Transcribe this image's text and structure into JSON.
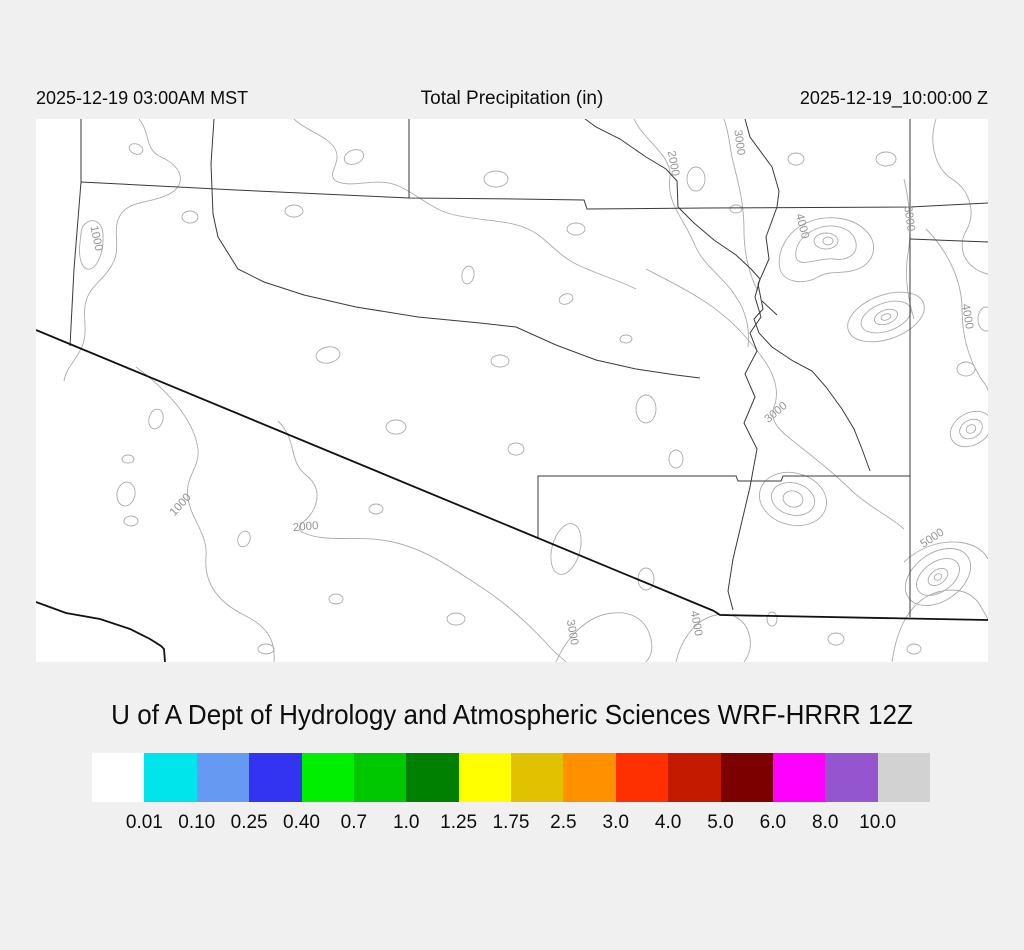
{
  "header": {
    "left_timestamp": "2025-12-19 03:00AM MST",
    "title": "Total Precipitation (in)",
    "right_timestamp": "2025-12-19_10:00:00 Z"
  },
  "map": {
    "type": "contour-map",
    "region": "southern Arizona with county boundaries and US-Mexico border",
    "contour_labels": [
      {
        "text": "1000"
      },
      {
        "text": "1000"
      },
      {
        "text": "2000"
      },
      {
        "text": "2000"
      },
      {
        "text": "3000"
      },
      {
        "text": "3000"
      },
      {
        "text": "3000"
      },
      {
        "text": "4000"
      },
      {
        "text": "4000"
      },
      {
        "text": "4000"
      },
      {
        "text": "5000"
      },
      {
        "text": "6000"
      }
    ]
  },
  "caption": "U of A Dept of Hydrology and Atmospheric Sciences WRF-HRRR 12Z",
  "colorbar": {
    "units": "in",
    "colors": [
      "#FFFFFF",
      "#00E5EB",
      "#6699F2",
      "#3333F2",
      "#00EE00",
      "#00C800",
      "#008000",
      "#FFFF00",
      "#E1C200",
      "#FF9100",
      "#FF3000",
      "#C41A00",
      "#7D0000",
      "#FF00FF",
      "#9455CE",
      "#D2D2D2"
    ],
    "tick_labels": [
      "0.01",
      "0.10",
      "0.25",
      "0.40",
      "0.7",
      "1.0",
      "1.25",
      "1.75",
      "2.5",
      "3.0",
      "4.0",
      "5.0",
      "6.0",
      "8.0",
      "10.0"
    ]
  },
  "colors": {
    "page_bg": "#f0f0f0",
    "map_bg": "#ffffff",
    "boundary_line": "#3a3a3a",
    "border_line": "#111111",
    "contour_line": "#ababab",
    "text": "#0d0d0d"
  }
}
